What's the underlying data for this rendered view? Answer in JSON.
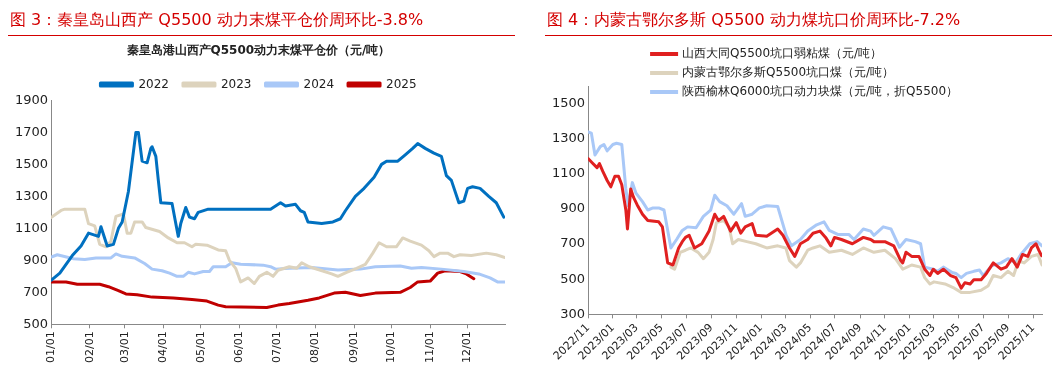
{
  "chart_data": [
    {
      "type": "line",
      "title": "图 3：秦皇岛山西产 Q5500 动力末煤平仓价周环比-3.8%",
      "subtitle": "秦皇岛港山西产Q5500动力末煤平仓价（元/吨）",
      "legend": "top",
      "grid": false,
      "marker": "none",
      "line_style": "solid",
      "xlim": [
        "--01-01",
        "--12-31"
      ],
      "xticks": [
        {
          "value": "--01-01",
          "label": "01/01"
        },
        {
          "value": "--02-01",
          "label": "02/01"
        },
        {
          "value": "--03-01",
          "label": "03/01"
        },
        {
          "value": "--04-01",
          "label": "04/01"
        },
        {
          "value": "--05-01",
          "label": "05/01"
        },
        {
          "value": "--06-01",
          "label": "06/01"
        },
        {
          "value": "--07-01",
          "label": "07/01"
        },
        {
          "value": "--08-01",
          "label": "08/01"
        },
        {
          "value": "--09-01",
          "label": "09/01"
        },
        {
          "value": "--10-01",
          "label": "10/01"
        },
        {
          "value": "--11-01",
          "label": "11/01"
        },
        {
          "value": "--12-01",
          "label": "12/01"
        }
      ],
      "ylim": [
        500,
        1900
      ],
      "yticks": [
        500,
        700,
        900,
        1100,
        1300,
        1500,
        1700,
        1900
      ],
      "series": [
        {
          "name": "2022",
          "color": "#0070c0",
          "x": [
            "--01-01",
            "--01-08",
            "--01-18",
            "--01-25",
            "--01-31",
            "--02-08",
            "--02-10",
            "--02-15",
            "--02-20",
            "--02-24",
            "--02-27",
            "--03-04",
            "--03-10",
            "--03-12",
            "--03-15",
            "--03-19",
            "--03-22",
            "--03-23",
            "--03-26",
            "--03-28",
            "--03-30",
            "--04-08",
            "--04-11",
            "--04-13",
            "--04-15",
            "--04-19",
            "--04-22",
            "--04-26",
            "--04-29",
            "--05-07",
            "--06-26",
            "--07-04",
            "--07-08",
            "--07-16",
            "--07-20",
            "--07-23",
            "--07-26",
            "--08-06",
            "--08-15",
            "--08-21",
            "--08-25",
            "--09-02",
            "--09-09",
            "--09-17",
            "--09-23",
            "--09-27",
            "--10-06",
            "--10-12",
            "--10-18",
            "--10-22",
            "--10-28",
            "--11-04",
            "--11-10",
            "--11-14",
            "--11-18",
            "--11-24",
            "--11-28",
            "--12-01",
            "--12-05",
            "--12-11",
            "--12-18",
            "--12-24",
            "--12-30"
          ],
          "values": [
            775,
            820,
            930,
            990,
            1070,
            1050,
            1110,
            990,
            1000,
            1100,
            1140,
            1330,
            1700,
            1700,
            1520,
            1510,
            1600,
            1610,
            1550,
            1400,
            1260,
            1255,
            1130,
            1050,
            1130,
            1230,
            1170,
            1160,
            1200,
            1220,
            1220,
            1260,
            1240,
            1250,
            1210,
            1200,
            1140,
            1130,
            1140,
            1160,
            1210,
            1300,
            1350,
            1420,
            1500,
            1520,
            1520,
            1560,
            1600,
            1630,
            1600,
            1570,
            1550,
            1430,
            1400,
            1260,
            1270,
            1350,
            1360,
            1350,
            1300,
            1260,
            1170
          ]
        },
        {
          "name": "2023",
          "color": "#ddd3bd",
          "x": [
            "--01-01",
            "--01-09",
            "--01-12",
            "--01-28",
            "--01-31",
            "--02-05",
            "--02-09",
            "--02-14",
            "--02-18",
            "--02-22",
            "--02-28",
            "--03-03",
            "--03-06",
            "--03-09",
            "--03-15",
            "--03-18",
            "--03-29",
            "--04-05",
            "--04-12",
            "--04-18",
            "--04-24",
            "--04-27",
            "--05-06",
            "--05-15",
            "--05-21",
            "--05-24",
            "--05-29",
            "--06-02",
            "--06-08",
            "--06-13",
            "--06-17",
            "--06-23",
            "--06-28",
            "--07-02",
            "--07-11",
            "--07-17",
            "--07-21",
            "--07-27",
            "--08-05",
            "--08-14",
            "--08-19",
            "--08-26",
            "--09-03",
            "--09-10",
            "--09-16",
            "--09-21",
            "--09-27",
            "--10-05",
            "--10-10",
            "--10-16",
            "--10-25",
            "--10-31",
            "--11-04",
            "--11-09",
            "--11-15",
            "--11-20",
            "--11-25",
            "--12-04",
            "--12-16",
            "--12-24",
            "--12-31"
          ],
          "values": [
            1168,
            1212,
            1220,
            1220,
            1130,
            1115,
            1000,
            985,
            1020,
            1175,
            1190,
            1070,
            1070,
            1140,
            1140,
            1105,
            1080,
            1040,
            1010,
            1010,
            985,
            1000,
            995,
            965,
            960,
            900,
            850,
            765,
            790,
            755,
            800,
            825,
            800,
            838,
            860,
            850,
            885,
            860,
            838,
            815,
            800,
            825,
            850,
            875,
            945,
            1010,
            985,
            985,
            1040,
            1020,
            995,
            960,
            923,
            945,
            945,
            923,
            935,
            930,
            945,
            935,
            918
          ]
        },
        {
          "name": "2024",
          "color": "#a9c8f7",
          "x": [
            "--01-01",
            "--01-06",
            "--01-19",
            "--01-28",
            "--02-06",
            "--02-18",
            "--02-22",
            "--02-27",
            "--03-09",
            "--03-17",
            "--03-23",
            "--03-31",
            "--04-06",
            "--04-12",
            "--04-17",
            "--04-21",
            "--04-26",
            "--05-03",
            "--05-08",
            "--05-11",
            "--05-21",
            "--05-26",
            "--06-02",
            "--06-20",
            "--06-26",
            "--06-30",
            "--07-11",
            "--07-29",
            "--08-19",
            "--09-06",
            "--09-18",
            "--10-08",
            "--10-17",
            "--10-25",
            "--11-10",
            "--11-28",
            "--12-10",
            "--12-19",
            "--12-25",
            "--12-31"
          ],
          "values": [
            920,
            935,
            910,
            905,
            915,
            915,
            940,
            925,
            915,
            880,
            845,
            835,
            820,
            800,
            800,
            825,
            815,
            830,
            830,
            860,
            860,
            885,
            875,
            870,
            860,
            845,
            850,
            855,
            840,
            845,
            860,
            865,
            850,
            855,
            845,
            830,
            815,
            790,
            765,
            765
          ]
        },
        {
          "name": "2025",
          "color": "#c00000",
          "x": [
            "--01-01",
            "--01-13",
            "--01-22",
            "--02-09",
            "--02-16",
            "--02-24",
            "--03-02",
            "--03-11",
            "--03-23",
            "--04-09",
            "--04-24",
            "--05-06",
            "--05-15",
            "--05-21",
            "--06-23",
            "--07-02",
            "--07-11",
            "--07-26",
            "--08-04",
            "--08-16",
            "--08-25",
            "--09-06",
            "--09-18",
            "--10-08",
            "--10-16",
            "--10-22",
            "--11-01",
            "--11-07",
            "--11-13",
            "--11-25",
            "--11-30",
            "--12-06"
          ],
          "values": [
            765,
            765,
            750,
            750,
            735,
            710,
            690,
            685,
            670,
            665,
            655,
            645,
            620,
            610,
            605,
            620,
            630,
            650,
            665,
            695,
            700,
            680,
            695,
            700,
            730,
            765,
            770,
            820,
            835,
            830,
            815,
            785
          ]
        }
      ]
    },
    {
      "type": "line",
      "title": "图 4：内蒙古鄂尔多斯 Q5500 动力煤坑口价周环比-7.2%",
      "legend": "top left",
      "grid": false,
      "marker": "none",
      "line_style": "solid",
      "xlim": [
        "2022-11-01",
        "2025-11-23"
      ],
      "xticks": [
        {
          "value": "2022-11",
          "label": "2022/11"
        },
        {
          "value": "2023-01",
          "label": "2023/01"
        },
        {
          "value": "2023-03",
          "label": "2023/03"
        },
        {
          "value": "2023-05",
          "label": "2023/05"
        },
        {
          "value": "2023-07",
          "label": "2023/07"
        },
        {
          "value": "2023-09",
          "label": "2023/09"
        },
        {
          "value": "2023-11",
          "label": "2023/11"
        },
        {
          "value": "2024-01",
          "label": "2024/01"
        },
        {
          "value": "2024-03",
          "label": "2024/03"
        },
        {
          "value": "2024-05",
          "label": "2024/05"
        },
        {
          "value": "2024-07",
          "label": "2024/07"
        },
        {
          "value": "2024-09",
          "label": "2024/09"
        },
        {
          "value": "2024-11",
          "label": "2024/11"
        },
        {
          "value": "2025-01",
          "label": "2025/01"
        },
        {
          "value": "2025-03",
          "label": "2025/03"
        },
        {
          "value": "2025-05",
          "label": "2025/05"
        },
        {
          "value": "2025-07",
          "label": "2025/07"
        },
        {
          "value": "2025-09",
          "label": "2025/09"
        },
        {
          "value": "2025-11",
          "label": "2025/11"
        }
      ],
      "ylim": [
        300,
        1600
      ],
      "yticks": [
        300,
        500,
        700,
        900,
        1100,
        1300,
        1500
      ],
      "series": [
        {
          "name": "山西大同Q5500坑口弱粘煤（元/吨）",
          "color": "#e02020",
          "x": [
            "2022-11-01",
            "2022-11-11",
            "2022-11-23",
            "2022-11-29",
            "2022-12-07",
            "2022-12-18",
            "2022-12-27",
            "2023-01-06",
            "2023-01-15",
            "2023-01-23",
            "2023-02-02",
            "2023-02-06",
            "2023-02-14",
            "2023-02-21",
            "2023-03-02",
            "2023-03-15",
            "2023-03-28",
            "2023-04-24",
            "2023-05-03",
            "2023-05-16",
            "2023-05-29",
            "2023-06-12",
            "2023-06-21",
            "2023-06-29",
            "2023-07-08",
            "2023-07-21",
            "2023-08-08",
            "2023-08-26",
            "2023-09-09",
            "2023-09-18",
            "2023-10-01",
            "2023-10-18",
            "2023-11-01",
            "2023-11-12",
            "2023-11-23",
            "2023-12-10",
            "2023-12-19",
            "2024-01-15",
            "2024-02-11",
            "2024-02-24",
            "2024-03-11",
            "2024-03-24",
            "2024-04-07",
            "2024-04-25",
            "2024-05-08",
            "2024-05-25",
            "2024-06-08",
            "2024-06-21",
            "2024-06-30",
            "2024-07-17",
            "2024-08-13",
            "2024-09-09",
            "2024-09-27",
            "2024-10-05",
            "2024-11-01",
            "2024-11-23",
            "2024-12-10",
            "2024-12-15",
            "2024-12-23",
            "2025-01-06",
            "2025-01-24",
            "2025-02-07",
            "2025-02-20",
            "2025-02-28",
            "2025-03-11",
            "2025-03-25",
            "2025-04-12",
            "2025-04-25",
            "2025-05-08",
            "2025-05-17",
            "2025-05-30",
            "2025-06-08",
            "2025-06-26",
            "2025-07-09",
            "2025-07-26",
            "2025-08-14",
            "2025-08-27",
            "2025-09-10",
            "2025-09-23",
            "2025-10-06",
            "2025-10-19",
            "2025-10-28",
            "2025-11-08",
            "2025-11-15",
            "2025-11-22"
          ],
          "values": [
            1187,
            1163,
            1135,
            1158,
            1115,
            1062,
            1026,
            1086,
            1086,
            1038,
            894,
            786,
            1014,
            966,
            923,
            870,
            834,
            827,
            798,
            593,
            581,
            678,
            714,
            738,
            750,
            678,
            702,
            774,
            870,
            834,
            858,
            774,
            822,
            762,
            798,
            817,
            750,
            745,
            786,
            750,
            678,
            630,
            702,
            726,
            762,
            774,
            738,
            690,
            738,
            726,
            702,
            738,
            726,
            714,
            714,
            690,
            606,
            593,
            654,
            630,
            630,
            557,
            521,
            557,
            533,
            557,
            521,
            509,
            449,
            480,
            473,
            497,
            497,
            533,
            593,
            557,
            569,
            617,
            569,
            641,
            630,
            678,
            702,
            666,
            634
          ]
        },
        {
          "name": "内蒙古鄂尔多斯Q5500坑口煤（元/吨）",
          "color": "#ddd3bd",
          "x": [
            "2023-05-24",
            "2023-06-02",
            "2023-06-16",
            "2023-06-29",
            "2023-07-12",
            "2023-07-30",
            "2023-08-12",
            "2023-08-26",
            "2023-09-05",
            "2023-09-13",
            "2023-10-01",
            "2023-10-14",
            "2023-10-23",
            "2023-11-06",
            "2023-11-27",
            "2023-12-19",
            "2024-01-15",
            "2024-02-11",
            "2024-03-02",
            "2024-03-11",
            "2024-03-28",
            "2024-04-07",
            "2024-04-25",
            "2024-05-08",
            "2024-05-25",
            "2024-06-17",
            "2024-07-17",
            "2024-08-13",
            "2024-09-09",
            "2024-10-05",
            "2024-11-01",
            "2024-11-27",
            "2024-12-15",
            "2025-01-06",
            "2025-01-28",
            "2025-02-07",
            "2025-02-20",
            "2025-03-02",
            "2025-03-29",
            "2025-04-21",
            "2025-05-08",
            "2025-05-30",
            "2025-06-26",
            "2025-07-13",
            "2025-07-26",
            "2025-08-14",
            "2025-08-31",
            "2025-09-14",
            "2025-09-26",
            "2025-10-10",
            "2025-10-28",
            "2025-11-13",
            "2025-11-23"
          ],
          "values": [
            569,
            557,
            653,
            665,
            678,
            653,
            617,
            653,
            726,
            822,
            834,
            798,
            702,
            726,
            714,
            702,
            678,
            690,
            678,
            606,
            569,
            593,
            665,
            678,
            690,
            653,
            665,
            641,
            678,
            653,
            665,
            617,
            557,
            581,
            569,
            509,
            473,
            485,
            473,
            449,
            425,
            425,
            437,
            461,
            521,
            509,
            545,
            521,
            605,
            593,
            630,
            641,
            581
          ]
        },
        {
          "name": "陕西榆林Q6000坑口动力块煤（元/吨，折Q5500）",
          "color": "#a9c8f7",
          "x": [
            "2022-11-01",
            "2022-11-09",
            "2022-11-18",
            "2022-12-01",
            "2022-12-10",
            "2022-12-18",
            "2023-01-01",
            "2023-01-10",
            "2023-01-23",
            "2023-02-02",
            "2023-02-08",
            "2023-02-18",
            "2023-02-27",
            "2023-03-15",
            "2023-03-28",
            "2023-04-10",
            "2023-04-24",
            "2023-05-07",
            "2023-05-24",
            "2023-06-07",
            "2023-06-21",
            "2023-07-04",
            "2023-07-25",
            "2023-08-12",
            "2023-08-30",
            "2023-09-09",
            "2023-09-21",
            "2023-10-09",
            "2023-10-26",
            "2023-11-14",
            "2023-11-23",
            "2023-12-10",
            "2023-12-28",
            "2024-01-15",
            "2024-02-11",
            "2024-03-03",
            "2024-03-16",
            "2024-04-07",
            "2024-04-25",
            "2024-05-17",
            "2024-06-04",
            "2024-06-17",
            "2024-07-08",
            "2024-08-04",
            "2024-08-17",
            "2024-09-09",
            "2024-09-27",
            "2024-10-05",
            "2024-10-28",
            "2024-11-16",
            "2024-12-07",
            "2024-12-23",
            "2025-01-15",
            "2025-01-28",
            "2025-02-07",
            "2025-02-28",
            "2025-03-11",
            "2025-03-25",
            "2025-04-16",
            "2025-04-25",
            "2025-05-08",
            "2025-05-21",
            "2025-06-08",
            "2025-06-22",
            "2025-07-01",
            "2025-07-22",
            "2025-08-14",
            "2025-08-31",
            "2025-09-19",
            "2025-10-02",
            "2025-10-24",
            "2025-11-11",
            "2025-11-23"
          ],
          "values": [
            1339,
            1332,
            1207,
            1255,
            1267,
            1231,
            1267,
            1274,
            1267,
            1014,
            918,
            1050,
            990,
            942,
            894,
            906,
            906,
            894,
            678,
            726,
            778,
            798,
            793,
            858,
            894,
            978,
            942,
            918,
            870,
            930,
            858,
            870,
            906,
            918,
            914,
            750,
            690,
            726,
            774,
            810,
            827,
            778,
            755,
            755,
            726,
            786,
            774,
            750,
            798,
            786,
            682,
            726,
            714,
            702,
            569,
            557,
            545,
            569,
            538,
            533,
            509,
            533,
            545,
            552,
            521,
            576,
            593,
            617,
            593,
            641,
            702,
            714,
            690
          ]
        }
      ]
    }
  ]
}
